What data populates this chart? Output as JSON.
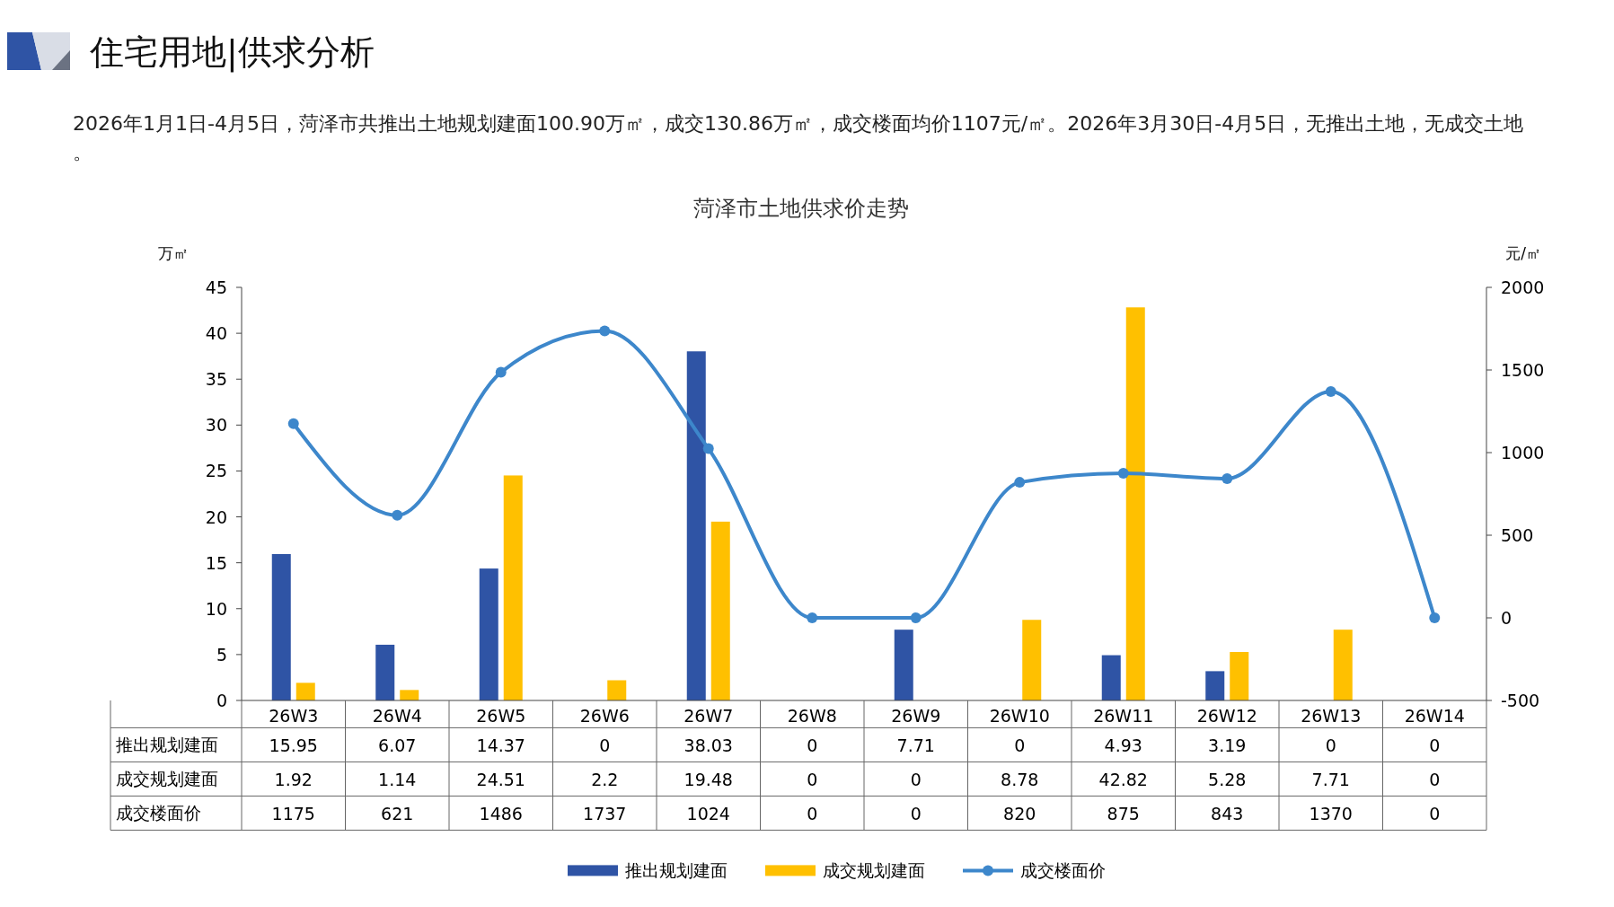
{
  "chart_data": {
    "type": "bar",
    "title": "住宅用地|供求分析",
    "subtitle": "2026年1月1日-4月5日，菏泽市共推出土地规划建面100.90万㎡，成交130.86万㎡，成交楼面均价1107元/㎡。2026年3月30日-4月5日，无推出土地，无成交土地。",
    "annotations": [
      "菏泽市土地供求价走势"
    ],
    "ylabel": "万㎡",
    "y2label": "元/㎡",
    "categories": [
      "26W3",
      "26W4",
      "26W5",
      "26W6",
      "26W7",
      "26W8",
      "26W9",
      "26W10",
      "26W11",
      "26W12",
      "26W13",
      "26W14"
    ],
    "series": [
      {
        "name": "推出规划建面",
        "color": "#2f54a5",
        "values": [
          15.95,
          6.07,
          14.37,
          0,
          38.03,
          0,
          7.71,
          0,
          4.93,
          3.19,
          0,
          0
        ]
      },
      {
        "name": "成交规划建面",
        "color": "#ffc000",
        "values": [
          1.92,
          1.14,
          24.51,
          2.2,
          19.48,
          0,
          0,
          8.78,
          42.82,
          5.28,
          7.71,
          0
        ]
      },
      {
        "name": "成交楼面价",
        "type": "line",
        "axis": "y2",
        "color": "#3d87cb",
        "marker": "circle",
        "values": [
          1175,
          621,
          1486,
          1737,
          1024,
          0,
          0,
          820,
          875,
          843,
          1370,
          0
        ]
      }
    ],
    "ylim": [
      0,
      45
    ],
    "yticks": [
      0,
      5,
      10,
      15,
      20,
      25,
      30,
      35,
      40,
      45
    ],
    "y2lim": [
      -500,
      2000
    ],
    "y2ticks": [
      -500,
      0,
      500,
      1000,
      1500,
      2000
    ],
    "data_labels": true,
    "legend": "bottom"
  }
}
